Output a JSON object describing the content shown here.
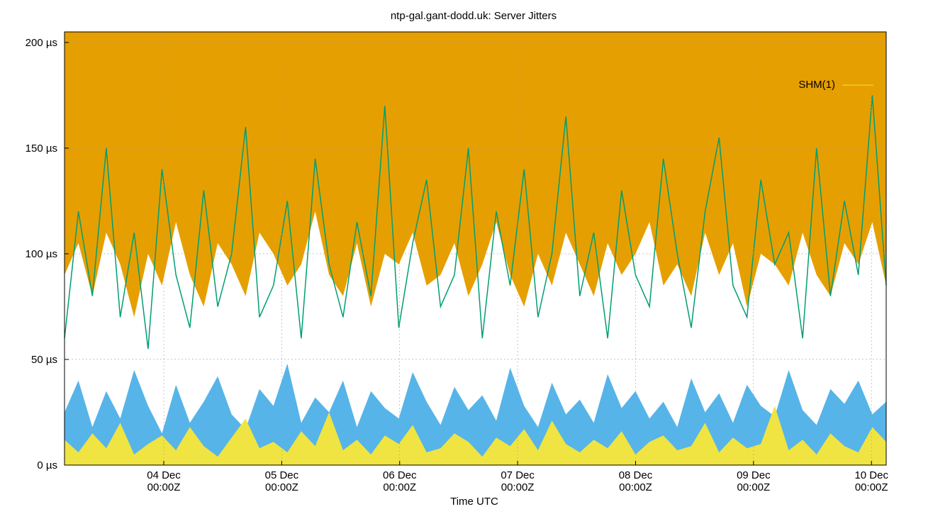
{
  "chart_data": {
    "type": "line",
    "title": "ntp-gal.gant-dodd.uk: Server Jitters",
    "xlabel": "Time UTC",
    "ylabel": "",
    "xlim_hours_from_04Dec0000": [
      -20.2,
      147
    ],
    "ylim": [
      0,
      205
    ],
    "grid": true,
    "legend_position": "top-right",
    "legend": [
      "SHM(1)"
    ],
    "yticks": [
      {
        "v": 0,
        "label": "0 µs"
      },
      {
        "v": 50,
        "label": "50 µs"
      },
      {
        "v": 100,
        "label": "100 µs"
      },
      {
        "v": 150,
        "label": "150 µs"
      },
      {
        "v": 200,
        "label": "200 µs"
      }
    ],
    "xticks": [
      {
        "v": 0,
        "l1": "04 Dec",
        "l2": "00:00Z"
      },
      {
        "v": 24,
        "l1": "05 Dec",
        "l2": "00:00Z"
      },
      {
        "v": 48,
        "l1": "06 Dec",
        "l2": "00:00Z"
      },
      {
        "v": 72,
        "l1": "07 Dec",
        "l2": "00:00Z"
      },
      {
        "v": 96,
        "l1": "08 Dec",
        "l2": "00:00Z"
      },
      {
        "v": 120,
        "l1": "09 Dec",
        "l2": "00:00Z"
      },
      {
        "v": 144,
        "l1": "10 Dec",
        "l2": "00:00Z"
      }
    ],
    "series": [
      {
        "name": "",
        "color": "#e69f00",
        "fill": "top",
        "values": [
          90,
          105,
          80,
          110,
          95,
          70,
          100,
          85,
          115,
          90,
          75,
          105,
          95,
          80,
          110,
          100,
          85,
          95,
          120,
          90,
          80,
          105,
          75,
          100,
          95,
          110,
          85,
          90,
          105,
          80,
          95,
          115,
          90,
          75,
          100,
          85,
          110,
          95,
          80,
          105,
          90,
          100,
          115,
          85,
          95,
          80,
          110,
          90,
          105,
          75,
          100,
          95,
          85,
          110,
          90,
          80,
          105,
          95,
          115,
          85
        ]
      },
      {
        "name": "",
        "color": "#009e73",
        "values": [
          60,
          120,
          80,
          150,
          70,
          110,
          55,
          140,
          90,
          65,
          130,
          75,
          100,
          160,
          70,
          85,
          125,
          60,
          145,
          95,
          70,
          115,
          80,
          170,
          65,
          105,
          135,
          75,
          90,
          150,
          60,
          120,
          85,
          140,
          70,
          100,
          165,
          80,
          110,
          60,
          130,
          90,
          75,
          145,
          100,
          65,
          120,
          155,
          85,
          70,
          135,
          95,
          110,
          60,
          150,
          80,
          125,
          90,
          175,
          85
        ]
      },
      {
        "name": "",
        "color": "#56b4e9",
        "fill": "bottom",
        "values": [
          25,
          40,
          18,
          35,
          22,
          45,
          28,
          15,
          38,
          20,
          30,
          42,
          24,
          17,
          36,
          28,
          48,
          20,
          32,
          25,
          40,
          18,
          35,
          27,
          22,
          44,
          30,
          19,
          37,
          26,
          33,
          21,
          46,
          28,
          18,
          39,
          24,
          31,
          20,
          43,
          27,
          35,
          22,
          30,
          18,
          41,
          25,
          34,
          20,
          38,
          28,
          23,
          45,
          26,
          19,
          36,
          29,
          40,
          24,
          30
        ]
      },
      {
        "name": "SHM(1)",
        "color": "#f0e442",
        "fill": "bottom",
        "values": [
          12,
          6,
          15,
          8,
          20,
          5,
          10,
          14,
          7,
          18,
          9,
          4,
          13,
          22,
          8,
          11,
          6,
          16,
          9,
          25,
          7,
          12,
          5,
          14,
          10,
          19,
          6,
          8,
          15,
          11,
          4,
          13,
          9,
          17,
          7,
          21,
          10,
          6,
          12,
          8,
          16,
          5,
          11,
          14,
          7,
          9,
          20,
          6,
          13,
          8,
          10,
          28,
          7,
          12,
          5,
          15,
          9,
          6,
          18,
          11
        ]
      }
    ]
  }
}
